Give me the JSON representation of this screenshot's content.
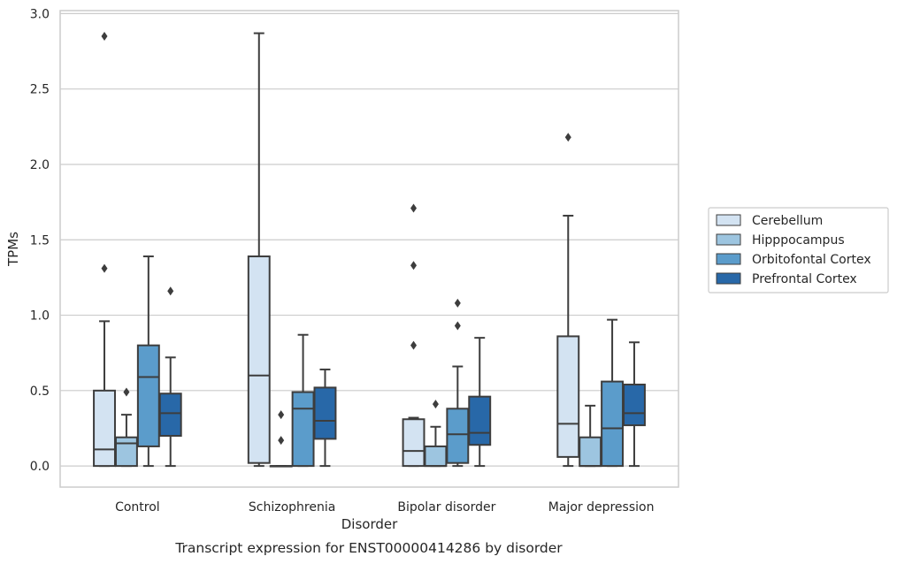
{
  "chart_data": {
    "type": "boxplot",
    "caption": "Transcript expression for ENST00000414286 by disorder",
    "xlabel": "Disorder",
    "ylabel": "TPMs",
    "ylim": [
      -0.14,
      3.02
    ],
    "yticks": [
      "0.0",
      "0.5",
      "1.0",
      "1.5",
      "2.0",
      "2.5",
      "3.0"
    ],
    "grid": true,
    "legend_position": "right",
    "categories": [
      "Control",
      "Schizophrenia",
      "Bipolar disorder",
      "Major depression"
    ],
    "series": [
      {
        "name": "Cerebellum",
        "color": "#d3e3f2",
        "boxes": [
          {
            "whislo": 0.0,
            "q1": 0.0,
            "med": 0.11,
            "q3": 0.5,
            "whishi": 0.96,
            "fliers": [
              1.31,
              2.85
            ]
          },
          {
            "whislo": 0.0,
            "q1": 0.02,
            "med": 0.6,
            "q3": 1.39,
            "whishi": 2.87,
            "fliers": []
          },
          {
            "whislo": 0.0,
            "q1": 0.0,
            "med": 0.1,
            "q3": 0.31,
            "whishi": 0.32,
            "fliers": [
              0.8,
              1.33,
              1.71
            ]
          },
          {
            "whislo": 0.0,
            "q1": 0.06,
            "med": 0.28,
            "q3": 0.86,
            "whishi": 1.66,
            "fliers": [
              2.18
            ]
          }
        ]
      },
      {
        "name": "Hipppocampus",
        "color": "#9dc5e0",
        "boxes": [
          {
            "whislo": 0.0,
            "q1": 0.0,
            "med": 0.15,
            "q3": 0.19,
            "whishi": 0.34,
            "fliers": [
              0.49
            ]
          },
          {
            "whislo": 0.0,
            "q1": 0.0,
            "med": 0.0,
            "q3": 0.0,
            "whishi": 0.0,
            "fliers": [
              0.17,
              0.34
            ]
          },
          {
            "whislo": 0.0,
            "q1": 0.0,
            "med": 0.0,
            "q3": 0.13,
            "whishi": 0.26,
            "fliers": [
              0.41
            ]
          },
          {
            "whislo": 0.0,
            "q1": 0.0,
            "med": 0.0,
            "q3": 0.19,
            "whishi": 0.4,
            "fliers": []
          }
        ]
      },
      {
        "name": "Orbitofontal Cortex",
        "color": "#5b9ccb",
        "boxes": [
          {
            "whislo": 0.0,
            "q1": 0.13,
            "med": 0.59,
            "q3": 0.8,
            "whishi": 1.39,
            "fliers": []
          },
          {
            "whislo": 0.0,
            "q1": 0.0,
            "med": 0.38,
            "q3": 0.49,
            "whishi": 0.87,
            "fliers": []
          },
          {
            "whislo": 0.0,
            "q1": 0.02,
            "med": 0.21,
            "q3": 0.38,
            "whishi": 0.66,
            "fliers": [
              0.93,
              1.08
            ]
          },
          {
            "whislo": 0.0,
            "q1": 0.0,
            "med": 0.25,
            "q3": 0.56,
            "whishi": 0.97,
            "fliers": []
          }
        ]
      },
      {
        "name": "Prefrontal Cortex",
        "color": "#2868a8",
        "boxes": [
          {
            "whislo": 0.0,
            "q1": 0.2,
            "med": 0.35,
            "q3": 0.48,
            "whishi": 0.72,
            "fliers": [
              1.16
            ]
          },
          {
            "whislo": 0.0,
            "q1": 0.18,
            "med": 0.3,
            "q3": 0.52,
            "whishi": 0.64,
            "fliers": []
          },
          {
            "whislo": 0.0,
            "q1": 0.14,
            "med": 0.22,
            "q3": 0.46,
            "whishi": 0.85,
            "fliers": []
          },
          {
            "whislo": 0.0,
            "q1": 0.27,
            "med": 0.35,
            "q3": 0.54,
            "whishi": 0.82,
            "fliers": []
          }
        ]
      }
    ]
  }
}
